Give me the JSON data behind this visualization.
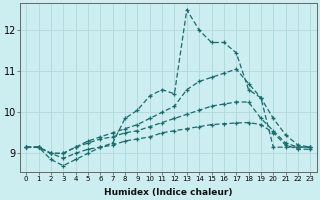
{
  "xlabel": "Humidex (Indice chaleur)",
  "background_color": "#cceef0",
  "line_color": "#1a6b6b",
  "grid_color": "#b0d8da",
  "xlim": [
    -0.5,
    23.5
  ],
  "ylim": [
    8.55,
    12.65
  ],
  "xticks": [
    0,
    1,
    2,
    3,
    4,
    5,
    6,
    7,
    8,
    9,
    10,
    11,
    12,
    13,
    14,
    15,
    16,
    17,
    18,
    19,
    20,
    21,
    22,
    23
  ],
  "yticks": [
    9,
    10,
    11,
    12
  ],
  "lines": [
    [
      9.15,
      9.15,
      8.85,
      8.7,
      8.85,
      9.0,
      9.15,
      9.25,
      9.85,
      10.05,
      10.4,
      10.55,
      10.45,
      12.5,
      12.0,
      11.7,
      11.7,
      11.45,
      10.55,
      10.35,
      9.15,
      9.15,
      9.15,
      9.15
    ],
    [
      9.15,
      9.15,
      9.0,
      9.0,
      9.15,
      9.3,
      9.4,
      9.5,
      9.6,
      9.7,
      9.85,
      10.0,
      10.15,
      10.55,
      10.75,
      10.85,
      10.95,
      11.05,
      10.7,
      10.35,
      9.85,
      9.45,
      9.2,
      9.15
    ],
    [
      9.15,
      9.15,
      9.0,
      9.0,
      9.15,
      9.25,
      9.35,
      9.4,
      9.5,
      9.55,
      9.65,
      9.75,
      9.85,
      9.95,
      10.05,
      10.15,
      10.2,
      10.25,
      10.25,
      9.85,
      9.55,
      9.25,
      9.15,
      9.15
    ],
    [
      9.15,
      9.15,
      9.0,
      8.88,
      9.0,
      9.1,
      9.15,
      9.2,
      9.3,
      9.35,
      9.4,
      9.5,
      9.55,
      9.6,
      9.65,
      9.7,
      9.72,
      9.74,
      9.75,
      9.7,
      9.5,
      9.2,
      9.1,
      9.1
    ]
  ]
}
